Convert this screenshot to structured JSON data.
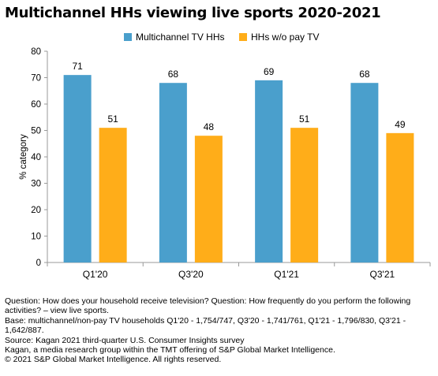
{
  "title": "Multichannel HHs viewing live sports 2020-2021",
  "colors": {
    "series1": "#4a9fcc",
    "series2": "#ffad19",
    "axis": "#999999"
  },
  "chart_data": {
    "type": "bar",
    "categories": [
      "Q1'20",
      "Q3'20",
      "Q1'21",
      "Q3'21"
    ],
    "series": [
      {
        "name": "Multichannel TV HHs",
        "values": [
          71,
          68,
          69,
          68
        ],
        "labels": [
          "71",
          "68",
          "69",
          "68"
        ]
      },
      {
        "name": "HHs w/o pay TV",
        "values": [
          51,
          48,
          51,
          49
        ],
        "labels": [
          "51",
          "48",
          "51",
          "49"
        ]
      }
    ],
    "y_ticks": [
      "0",
      "10",
      "20",
      "30",
      "40",
      "50",
      "60",
      "70",
      "80"
    ],
    "ylabel": "% category",
    "xlabel": "",
    "ylim": [
      0,
      80
    ],
    "legend_position": "top",
    "grid": false
  },
  "notes": [
    "Question: How does your household receive television? Question:  How frequently do you perform the following activities? – view live sports.",
    "Base: multichannel/non-pay TV households Q1'20 - 1,754/747, Q3'20 - 1,741/761, Q1'21 - 1,796/830, Q3'21 - 1,642/887.",
    "Source: Kagan 2021 third-quarter U.S. Consumer Insights survey",
    "Kagan, a media research group within the TMT offering of S&P Global Market Intelligence.",
    "© 2021 S&P Global Market Intelligence.  All rights reserved."
  ]
}
